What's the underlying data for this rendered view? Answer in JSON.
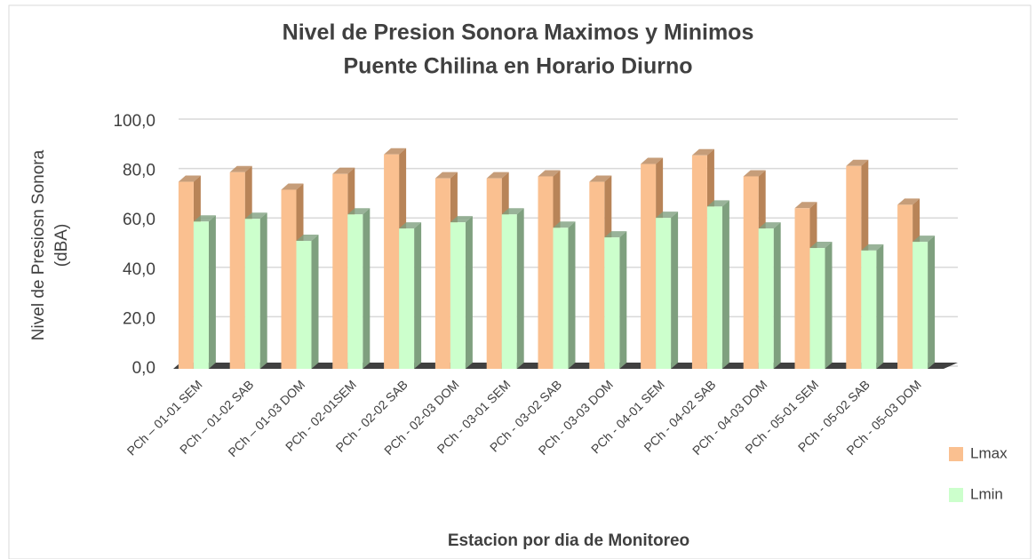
{
  "chart_data": {
    "type": "bar3d",
    "title": [
      "Nivel de Presion Sonora Maximos y Minimos",
      "Puente Chilina en Horario Diurno"
    ],
    "y_label": [
      "Nivel de Presiosn Sonora",
      "(dBA)"
    ],
    "x_label": "Estacion por dia de Monitoreo",
    "categories": [
      "PCh – 01-01 SEM",
      "PCh – 01-02 SAB",
      "PCh – 01-03 DOM",
      "PCh - 02-01SEM",
      "PCh - 02-02 SAB",
      "PCh - 02-03 DOM",
      "PCh - 03-01 SEM",
      "PCh - 03-02 SAB",
      "PCh - 03-03 DOM",
      "PCh - 04-01 SEM",
      "PCh - 04-02 SAB",
      "PCh - 04-03 DOM",
      "PCh - 05-01 SEM",
      "PCh - 05-02 SAB",
      "PCh - 05-03 DOM"
    ],
    "series": [
      {
        "name": "Lmax",
        "color": "#fac090",
        "side": "#b88458",
        "values": [
          75.7,
          79.6,
          72.5,
          78.9,
          86.8,
          77.1,
          77.1,
          77.9,
          75.7,
          82.9,
          86.4,
          77.9,
          65.0,
          82.1,
          66.4
        ]
      },
      {
        "name": "Lmin",
        "color": "#ccffcc",
        "side": "#7fa07f",
        "values": [
          59.6,
          60.7,
          51.8,
          62.5,
          56.8,
          59.3,
          62.5,
          57.1,
          53.2,
          61.1,
          65.7,
          56.8,
          48.9,
          47.9,
          51.4
        ]
      }
    ],
    "ylim": [
      0,
      100
    ],
    "yticks": [
      {
        "value": 0,
        "label": "0,0"
      },
      {
        "value": 20,
        "label": "20,0"
      },
      {
        "value": 40,
        "label": "40,0"
      },
      {
        "value": 60,
        "label": "60,0"
      },
      {
        "value": 80,
        "label": "80,0"
      },
      {
        "value": 100,
        "label": "100,0"
      }
    ],
    "grid": true,
    "legend": "right"
  }
}
